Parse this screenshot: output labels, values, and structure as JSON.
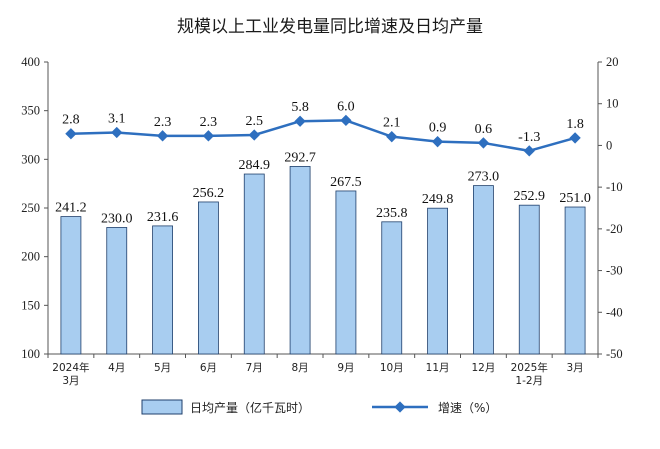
{
  "chart_data": {
    "type": "bar+line",
    "title": "规模以上工业发电量同比增速及日均产量",
    "categories": [
      [
        "2024年",
        "3月"
      ],
      [
        "4月"
      ],
      [
        "5月"
      ],
      [
        "6月"
      ],
      [
        "7月"
      ],
      [
        "8月"
      ],
      [
        "9月"
      ],
      [
        "10月"
      ],
      [
        "11月"
      ],
      [
        "12月"
      ],
      [
        "2025年",
        "1-2月"
      ],
      [
        "3月"
      ]
    ],
    "series": [
      {
        "name": "日均产量（亿千瓦时）",
        "type": "bar",
        "axis": "left",
        "values": [
          241.2,
          230.0,
          231.6,
          256.2,
          284.9,
          292.7,
          267.5,
          235.8,
          249.8,
          273.0,
          252.9,
          251.0
        ],
        "labels": [
          "241.2",
          "230.0",
          "231.6",
          "256.2",
          "284.9",
          "292.7",
          "267.5",
          "235.8",
          "249.8",
          "273.0",
          "252.9",
          "251.0"
        ]
      },
      {
        "name": "增速（%）",
        "type": "line",
        "axis": "right",
        "values": [
          2.8,
          3.1,
          2.3,
          2.3,
          2.5,
          5.8,
          6.0,
          2.1,
          0.9,
          0.6,
          -1.3,
          1.8
        ],
        "labels": [
          "2.8",
          "3.1",
          "2.3",
          "2.3",
          "2.5",
          "5.8",
          "6.0",
          "2.1",
          "0.9",
          "0.6",
          "-1.3",
          "1.8"
        ]
      }
    ],
    "y_left": {
      "min": 100,
      "max": 400,
      "ticks": [
        100,
        150,
        200,
        250,
        300,
        350,
        400
      ]
    },
    "y_right": {
      "min": -50,
      "max": 20,
      "ticks": [
        -50,
        -40,
        -30,
        -20,
        -10,
        0,
        10,
        20
      ]
    },
    "grid": false,
    "legend_position": "bottom"
  },
  "colors": {
    "bar_fill": "#a8cdf0",
    "bar_stroke": "#1f3f6b",
    "line": "#2e6fbf",
    "axis": "#555555"
  }
}
